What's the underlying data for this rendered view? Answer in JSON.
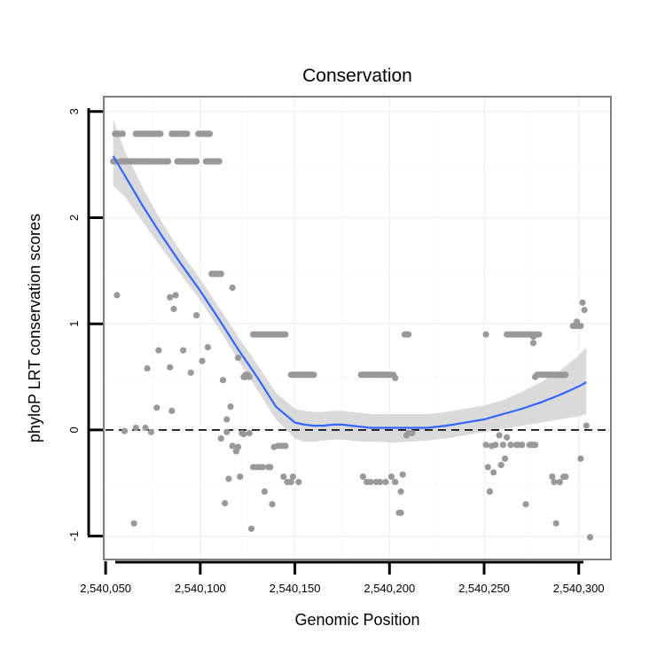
{
  "chart_data": {
    "type": "scatter",
    "title": "Conservation",
    "xlabel": "Genomic Position",
    "ylabel": "phyloP LRT conservation scores",
    "xlim": [
      2540049,
      2540317
    ],
    "ylim": [
      -1.22,
      3.14
    ],
    "x_ticks": [
      2540050,
      2540100,
      2540150,
      2540200,
      2540250,
      2540300
    ],
    "x_tick_labels": [
      "2,540,050",
      "2,540,100",
      "2,540,150",
      "2,540,200",
      "2,540,250",
      "2,540,300"
    ],
    "y_ticks": [
      -1,
      0,
      1,
      2,
      3
    ],
    "y_tick_labels": [
      "-1",
      "0",
      "1",
      "2",
      "3"
    ],
    "grid": true,
    "reference_line": {
      "y": 0,
      "style": "dashed"
    },
    "point_color": "#999999",
    "smooth_color": "#3366FF",
    "ribbon_color": "#D3D3D3",
    "points": [
      [
        2540055,
        2.79
      ],
      [
        2540056,
        2.79
      ],
      [
        2540057,
        2.79
      ],
      [
        2540058,
        2.79
      ],
      [
        2540059,
        2.79
      ],
      [
        2540066,
        2.79
      ],
      [
        2540067,
        2.79
      ],
      [
        2540068,
        2.79
      ],
      [
        2540069,
        2.79
      ],
      [
        2540070,
        2.79
      ],
      [
        2540071,
        2.79
      ],
      [
        2540072,
        2.79
      ],
      [
        2540073,
        2.79
      ],
      [
        2540074,
        2.79
      ],
      [
        2540075,
        2.79
      ],
      [
        2540076,
        2.79
      ],
      [
        2540077,
        2.79
      ],
      [
        2540078,
        2.79
      ],
      [
        2540079,
        2.79
      ],
      [
        2540085,
        2.79
      ],
      [
        2540086,
        2.79
      ],
      [
        2540087,
        2.79
      ],
      [
        2540088,
        2.79
      ],
      [
        2540089,
        2.79
      ],
      [
        2540090,
        2.79
      ],
      [
        2540091,
        2.79
      ],
      [
        2540092,
        2.79
      ],
      [
        2540093,
        2.79
      ],
      [
        2540099,
        2.79
      ],
      [
        2540100,
        2.79
      ],
      [
        2540101,
        2.79
      ],
      [
        2540102,
        2.79
      ],
      [
        2540103,
        2.79
      ],
      [
        2540104,
        2.79
      ],
      [
        2540105,
        2.79
      ],
      [
        2540054,
        2.53
      ],
      [
        2540055,
        2.53
      ],
      [
        2540058,
        2.53
      ],
      [
        2540059,
        2.53
      ],
      [
        2540060,
        2.53
      ],
      [
        2540061,
        2.53
      ],
      [
        2540062,
        2.53
      ],
      [
        2540063,
        2.53
      ],
      [
        2540064,
        2.53
      ],
      [
        2540065,
        2.53
      ],
      [
        2540066,
        2.53
      ],
      [
        2540067,
        2.53
      ],
      [
        2540068,
        2.53
      ],
      [
        2540069,
        2.53
      ],
      [
        2540070,
        2.53
      ],
      [
        2540071,
        2.53
      ],
      [
        2540072,
        2.53
      ],
      [
        2540073,
        2.53
      ],
      [
        2540074,
        2.53
      ],
      [
        2540075,
        2.53
      ],
      [
        2540076,
        2.53
      ],
      [
        2540077,
        2.53
      ],
      [
        2540078,
        2.53
      ],
      [
        2540079,
        2.53
      ],
      [
        2540080,
        2.53
      ],
      [
        2540081,
        2.53
      ],
      [
        2540082,
        2.53
      ],
      [
        2540083,
        2.53
      ],
      [
        2540088,
        2.53
      ],
      [
        2540089,
        2.53
      ],
      [
        2540090,
        2.53
      ],
      [
        2540091,
        2.53
      ],
      [
        2540092,
        2.53
      ],
      [
        2540093,
        2.53
      ],
      [
        2540094,
        2.53
      ],
      [
        2540095,
        2.53
      ],
      [
        2540096,
        2.53
      ],
      [
        2540097,
        2.53
      ],
      [
        2540098,
        2.53
      ],
      [
        2540103,
        2.53
      ],
      [
        2540104,
        2.53
      ],
      [
        2540105,
        2.53
      ],
      [
        2540106,
        2.53
      ],
      [
        2540107,
        2.53
      ],
      [
        2540108,
        2.53
      ],
      [
        2540109,
        2.53
      ],
      [
        2540110,
        2.53
      ],
      [
        2540106,
        1.47
      ],
      [
        2540107,
        1.47
      ],
      [
        2540108,
        1.47
      ],
      [
        2540109,
        1.47
      ],
      [
        2540110,
        1.47
      ],
      [
        2540111,
        1.47
      ],
      [
        2540056,
        1.27
      ],
      [
        2540117,
        1.34
      ],
      [
        2540084,
        1.25
      ],
      [
        2540087,
        1.27
      ],
      [
        2540086,
        1.14
      ],
      [
        2540098,
        1.08
      ],
      [
        2540078,
        0.75
      ],
      [
        2540091,
        0.75
      ],
      [
        2540072,
        0.58
      ],
      [
        2540084,
        0.59
      ],
      [
        2540095,
        0.54
      ],
      [
        2540101,
        0.65
      ],
      [
        2540077,
        0.21
      ],
      [
        2540085,
        0.18
      ],
      [
        2540104,
        0.78
      ],
      [
        2540112,
        0.47
      ],
      [
        2540116,
        0.22
      ],
      [
        2540114,
        0.1
      ],
      [
        2540120,
        0.68
      ],
      [
        2540123,
        0.5
      ],
      [
        2540124,
        0.5
      ],
      [
        2540125,
        0.52
      ],
      [
        2540126,
        0.5
      ],
      [
        2540060,
        -0.01
      ],
      [
        2540066,
        0.02
      ],
      [
        2540071,
        0.02
      ],
      [
        2540074,
        -0.02
      ],
      [
        2540065,
        -0.88
      ],
      [
        2540111,
        -0.08
      ],
      [
        2540114,
        -0.02
      ],
      [
        2540115,
        -0.46
      ],
      [
        2540117,
        -0.15
      ],
      [
        2540119,
        -0.2
      ],
      [
        2540120,
        -0.16
      ],
      [
        2540121,
        -0.44
      ],
      [
        2540122,
        -0.03
      ],
      [
        2540123,
        -0.04
      ],
      [
        2540124,
        0.52
      ],
      [
        2540126,
        -0.03
      ],
      [
        2540127,
        -0.93
      ],
      [
        2540113,
        -0.69
      ],
      [
        2540128,
        0.9
      ],
      [
        2540129,
        0.9
      ],
      [
        2540130,
        0.9
      ],
      [
        2540131,
        0.9
      ],
      [
        2540132,
        0.9
      ],
      [
        2540133,
        0.9
      ],
      [
        2540134,
        0.9
      ],
      [
        2540135,
        0.9
      ],
      [
        2540136,
        0.9
      ],
      [
        2540137,
        0.9
      ],
      [
        2540138,
        0.9
      ],
      [
        2540139,
        0.9
      ],
      [
        2540140,
        0.9
      ],
      [
        2540141,
        0.9
      ],
      [
        2540142,
        0.9
      ],
      [
        2540143,
        0.9
      ],
      [
        2540144,
        0.9
      ],
      [
        2540145,
        0.9
      ],
      [
        2540128,
        -0.35
      ],
      [
        2540130,
        -0.35
      ],
      [
        2540131,
        -0.35
      ],
      [
        2540133,
        -0.35
      ],
      [
        2540134,
        -0.58
      ],
      [
        2540136,
        -0.35
      ],
      [
        2540137,
        -0.35
      ],
      [
        2540138,
        -0.7
      ],
      [
        2540139,
        -0.16
      ],
      [
        2540141,
        -0.15
      ],
      [
        2540143,
        -0.15
      ],
      [
        2540144,
        -0.44
      ],
      [
        2540145,
        -0.15
      ],
      [
        2540146,
        -0.49
      ],
      [
        2540148,
        -0.49
      ],
      [
        2540149,
        -0.44
      ],
      [
        2540152,
        -0.49
      ],
      [
        2540148,
        0.52
      ],
      [
        2540149,
        0.52
      ],
      [
        2540150,
        0.52
      ],
      [
        2540151,
        0.52
      ],
      [
        2540152,
        0.52
      ],
      [
        2540153,
        0.52
      ],
      [
        2540154,
        0.52
      ],
      [
        2540155,
        0.52
      ],
      [
        2540156,
        0.52
      ],
      [
        2540157,
        0.52
      ],
      [
        2540158,
        0.52
      ],
      [
        2540159,
        0.52
      ],
      [
        2540160,
        0.52
      ],
      [
        2540185,
        0.52
      ],
      [
        2540186,
        0.52
      ],
      [
        2540187,
        0.52
      ],
      [
        2540188,
        0.52
      ],
      [
        2540189,
        0.52
      ],
      [
        2540190,
        0.52
      ],
      [
        2540191,
        0.52
      ],
      [
        2540192,
        0.52
      ],
      [
        2540193,
        0.52
      ],
      [
        2540194,
        0.52
      ],
      [
        2540195,
        0.52
      ],
      [
        2540196,
        0.52
      ],
      [
        2540197,
        0.52
      ],
      [
        2540198,
        0.52
      ],
      [
        2540199,
        0.52
      ],
      [
        2540200,
        0.52
      ],
      [
        2540201,
        0.52
      ],
      [
        2540202,
        0.52
      ],
      [
        2540203,
        0.49
      ],
      [
        2540186,
        -0.44
      ],
      [
        2540188,
        -0.49
      ],
      [
        2540190,
        -0.49
      ],
      [
        2540193,
        -0.49
      ],
      [
        2540195,
        -0.49
      ],
      [
        2540198,
        -0.49
      ],
      [
        2540201,
        -0.44
      ],
      [
        2540203,
        -0.49
      ],
      [
        2540205,
        -0.78
      ],
      [
        2540206,
        -0.78
      ],
      [
        2540206,
        -0.58
      ],
      [
        2540207,
        -0.42
      ],
      [
        2540208,
        0.9
      ],
      [
        2540209,
        0.9
      ],
      [
        2540210,
        0.9
      ],
      [
        2540209,
        -0.05
      ],
      [
        2540210,
        -0.03
      ],
      [
        2540212,
        -0.03
      ],
      [
        2540251,
        0.9
      ],
      [
        2540251,
        -0.14
      ],
      [
        2540252,
        -0.35
      ],
      [
        2540253,
        -0.58
      ],
      [
        2540254,
        -0.15
      ],
      [
        2540255,
        -0.4
      ],
      [
        2540256,
        -0.14
      ],
      [
        2540258,
        -0.05
      ],
      [
        2540259,
        -0.33
      ],
      [
        2540260,
        -0.14
      ],
      [
        2540261,
        -0.27
      ],
      [
        2540262,
        -0.07
      ],
      [
        2540264,
        -0.14
      ],
      [
        2540267,
        -0.14
      ],
      [
        2540268,
        -0.14
      ],
      [
        2540270,
        -0.14
      ],
      [
        2540272,
        -0.7
      ],
      [
        2540274,
        -0.14
      ],
      [
        2540275,
        -0.14
      ],
      [
        2540276,
        -0.14
      ],
      [
        2540277,
        -0.14
      ],
      [
        2540262,
        0.9
      ],
      [
        2540263,
        0.9
      ],
      [
        2540264,
        0.9
      ],
      [
        2540265,
        0.9
      ],
      [
        2540266,
        0.9
      ],
      [
        2540267,
        0.9
      ],
      [
        2540268,
        0.9
      ],
      [
        2540269,
        0.9
      ],
      [
        2540270,
        0.9
      ],
      [
        2540271,
        0.9
      ],
      [
        2540272,
        0.9
      ],
      [
        2540273,
        0.9
      ],
      [
        2540274,
        0.9
      ],
      [
        2540275,
        0.9
      ],
      [
        2540276,
        0.88
      ],
      [
        2540277,
        0.9
      ],
      [
        2540278,
        0.9
      ],
      [
        2540279,
        0.9
      ],
      [
        2540276,
        0.82
      ],
      [
        2540277,
        0.5
      ],
      [
        2540278,
        0.52
      ],
      [
        2540279,
        0.52
      ],
      [
        2540280,
        0.52
      ],
      [
        2540281,
        0.52
      ],
      [
        2540282,
        0.52
      ],
      [
        2540283,
        0.52
      ],
      [
        2540284,
        0.52
      ],
      [
        2540285,
        0.52
      ],
      [
        2540286,
        0.52
      ],
      [
        2540287,
        0.52
      ],
      [
        2540288,
        0.52
      ],
      [
        2540289,
        0.52
      ],
      [
        2540290,
        0.52
      ],
      [
        2540291,
        0.52
      ],
      [
        2540292,
        0.52
      ],
      [
        2540293,
        0.52
      ],
      [
        2540286,
        -0.44
      ],
      [
        2540287,
        -0.49
      ],
      [
        2540288,
        -0.88
      ],
      [
        2540290,
        -0.49
      ],
      [
        2540292,
        -0.44
      ],
      [
        2540293,
        -0.44
      ],
      [
        2540297,
        0.98
      ],
      [
        2540298,
        0.98
      ],
      [
        2540299,
        1.02
      ],
      [
        2540300,
        0.98
      ],
      [
        2540301,
        0.98
      ],
      [
        2540301,
        -0.27
      ],
      [
        2540302,
        1.2
      ],
      [
        2540303,
        1.13
      ],
      [
        2540304,
        0.04
      ],
      [
        2540306,
        -1.01
      ]
    ],
    "smooth": {
      "x": [
        2540054,
        2540060,
        2540070,
        2540080,
        2540090,
        2540100,
        2540110,
        2540120,
        2540130,
        2540140,
        2540150,
        2540155,
        2540160,
        2540165,
        2540170,
        2540175,
        2540180,
        2540185,
        2540190,
        2540195,
        2540200,
        2540210,
        2540220,
        2540230,
        2540240,
        2540250,
        2540260,
        2540270,
        2540280,
        2540290,
        2540300,
        2540304
      ],
      "y": [
        2.58,
        2.4,
        2.1,
        1.82,
        1.56,
        1.31,
        1.04,
        0.76,
        0.5,
        0.22,
        0.07,
        0.05,
        0.04,
        0.04,
        0.05,
        0.05,
        0.04,
        0.03,
        0.02,
        0.02,
        0.02,
        0.02,
        0.02,
        0.04,
        0.07,
        0.1,
        0.15,
        0.2,
        0.26,
        0.33,
        0.41,
        0.45
      ],
      "ymin": [
        2.3,
        2.2,
        1.95,
        1.7,
        1.46,
        1.22,
        0.95,
        0.66,
        0.38,
        0.1,
        -0.08,
        -0.11,
        -0.11,
        -0.1,
        -0.09,
        -0.09,
        -0.1,
        -0.11,
        -0.11,
        -0.11,
        -0.12,
        -0.11,
        -0.1,
        -0.08,
        -0.05,
        -0.02,
        0.01,
        0.04,
        0.07,
        0.1,
        0.13,
        0.15
      ],
      "ymax": [
        2.93,
        2.63,
        2.27,
        1.95,
        1.67,
        1.42,
        1.15,
        0.88,
        0.62,
        0.35,
        0.2,
        0.18,
        0.17,
        0.17,
        0.18,
        0.18,
        0.17,
        0.16,
        0.15,
        0.15,
        0.15,
        0.15,
        0.15,
        0.17,
        0.2,
        0.23,
        0.28,
        0.36,
        0.45,
        0.56,
        0.7,
        0.78
      ]
    }
  }
}
